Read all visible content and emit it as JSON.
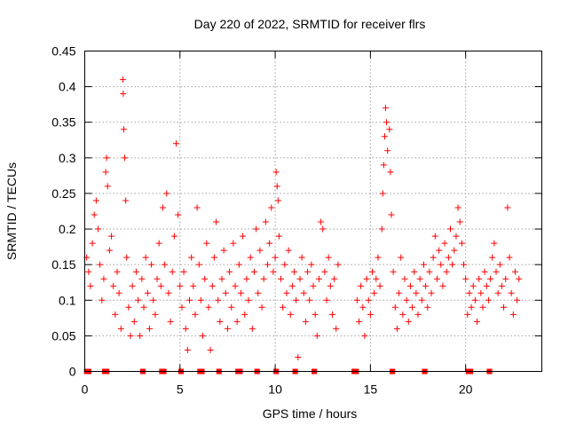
{
  "chart_data": {
    "type": "scatter",
    "title": "Day 220 of 2022, SRMTID for receiver flrs",
    "xlabel": "GPS time / hours",
    "ylabel": "SRMTID / TECUs",
    "xlim": [
      0,
      24
    ],
    "ylim": [
      0,
      0.45
    ],
    "x_ticks": [
      0,
      5,
      10,
      15,
      20
    ],
    "x_tick_labels": [
      "0",
      "5",
      "10",
      "15",
      "20"
    ],
    "y_ticks": [
      0,
      0.05,
      0.1,
      0.15,
      0.2,
      0.25,
      0.3,
      0.35,
      0.4,
      0.45
    ],
    "y_tick_labels": [
      "0",
      "0.05",
      "0.1",
      "0.15",
      "0.2",
      "0.25",
      "0.3",
      "0.35",
      "0.4",
      "0.45"
    ],
    "grid": true,
    "marker": "plus",
    "color": "#ff0000",
    "series": [
      {
        "name": "SRMTID",
        "points": [
          [
            0.1,
            0.16
          ],
          [
            0.2,
            0.14
          ],
          [
            0.3,
            0.12
          ],
          [
            0.4,
            0.18
          ],
          [
            0.5,
            0.22
          ],
          [
            0.6,
            0.24
          ],
          [
            0.7,
            0.2
          ],
          [
            0.8,
            0.15
          ],
          [
            0.9,
            0.1
          ],
          [
            1.0,
            0.13
          ],
          [
            1.1,
            0.28
          ],
          [
            1.15,
            0.3
          ],
          [
            1.2,
            0.26
          ],
          [
            1.3,
            0.17
          ],
          [
            1.4,
            0.19
          ],
          [
            1.5,
            0.12
          ],
          [
            1.6,
            0.08
          ],
          [
            1.7,
            0.14
          ],
          [
            1.8,
            0.11
          ],
          [
            1.9,
            0.06
          ],
          [
            2.0,
            0.41
          ],
          [
            2.02,
            0.39
          ],
          [
            2.05,
            0.34
          ],
          [
            2.1,
            0.3
          ],
          [
            2.15,
            0.24
          ],
          [
            2.2,
            0.16
          ],
          [
            2.3,
            0.09
          ],
          [
            2.4,
            0.05
          ],
          [
            2.5,
            0.12
          ],
          [
            2.6,
            0.07
          ],
          [
            2.7,
            0.14
          ],
          [
            2.8,
            0.1
          ],
          [
            2.9,
            0.05
          ],
          [
            3.0,
            0.13
          ],
          [
            3.1,
            0.09
          ],
          [
            3.2,
            0.16
          ],
          [
            3.3,
            0.11
          ],
          [
            3.4,
            0.06
          ],
          [
            3.5,
            0.15
          ],
          [
            3.6,
            0.1
          ],
          [
            3.7,
            0.08
          ],
          [
            3.8,
            0.13
          ],
          [
            3.9,
            0.18
          ],
          [
            4.0,
            0.12
          ],
          [
            4.1,
            0.23
          ],
          [
            4.2,
            0.15
          ],
          [
            4.3,
            0.25
          ],
          [
            4.4,
            0.11
          ],
          [
            4.5,
            0.07
          ],
          [
            4.6,
            0.14
          ],
          [
            4.7,
            0.19
          ],
          [
            4.8,
            0.32
          ],
          [
            4.9,
            0.22
          ],
          [
            5.0,
            0.12
          ],
          [
            5.1,
            0.09
          ],
          [
            5.2,
            0.14
          ],
          [
            5.3,
            0.06
          ],
          [
            5.4,
            0.03
          ],
          [
            5.5,
            0.1
          ],
          [
            5.6,
            0.16
          ],
          [
            5.7,
            0.12
          ],
          [
            5.8,
            0.08
          ],
          [
            5.9,
            0.23
          ],
          [
            6.0,
            0.15
          ],
          [
            6.1,
            0.1
          ],
          [
            6.2,
            0.05
          ],
          [
            6.3,
            0.13
          ],
          [
            6.4,
            0.18
          ],
          [
            6.5,
            0.09
          ],
          [
            6.6,
            0.03
          ],
          [
            6.7,
            0.12
          ],
          [
            6.8,
            0.16
          ],
          [
            6.9,
            0.21
          ],
          [
            7.0,
            0.1
          ],
          [
            7.1,
            0.07
          ],
          [
            7.2,
            0.13
          ],
          [
            7.3,
            0.17
          ],
          [
            7.4,
            0.11
          ],
          [
            7.5,
            0.06
          ],
          [
            7.6,
            0.14
          ],
          [
            7.7,
            0.09
          ],
          [
            7.8,
            0.18
          ],
          [
            7.9,
            0.12
          ],
          [
            8.0,
            0.07
          ],
          [
            8.1,
            0.15
          ],
          [
            8.2,
            0.11
          ],
          [
            8.3,
            0.19
          ],
          [
            8.4,
            0.08
          ],
          [
            8.5,
            0.13
          ],
          [
            8.6,
            0.1
          ],
          [
            8.7,
            0.16
          ],
          [
            8.8,
            0.06
          ],
          [
            8.9,
            0.14
          ],
          [
            9.0,
            0.2
          ],
          [
            9.1,
            0.11
          ],
          [
            9.2,
            0.17
          ],
          [
            9.3,
            0.09
          ],
          [
            9.4,
            0.13
          ],
          [
            9.5,
            0.21
          ],
          [
            9.6,
            0.15
          ],
          [
            9.7,
            0.18
          ],
          [
            9.8,
            0.23
          ],
          [
            9.9,
            0.14
          ],
          [
            10.0,
            0.16
          ],
          [
            10.05,
            0.28
          ],
          [
            10.1,
            0.26
          ],
          [
            10.15,
            0.24
          ],
          [
            10.2,
            0.19
          ],
          [
            10.3,
            0.13
          ],
          [
            10.4,
            0.09
          ],
          [
            10.5,
            0.15
          ],
          [
            10.6,
            0.11
          ],
          [
            10.7,
            0.17
          ],
          [
            10.8,
            0.08
          ],
          [
            10.9,
            0.12
          ],
          [
            11.0,
            0.14
          ],
          [
            11.1,
            0.1
          ],
          [
            11.2,
            0.02
          ],
          [
            11.3,
            0.13
          ],
          [
            11.4,
            0.16
          ],
          [
            11.5,
            0.11
          ],
          [
            11.6,
            0.07
          ],
          [
            11.7,
            0.14
          ],
          [
            11.8,
            0.1
          ],
          [
            11.9,
            0.15
          ],
          [
            12.0,
            0.12
          ],
          [
            12.1,
            0.08
          ],
          [
            12.2,
            0.05
          ],
          [
            12.3,
            0.13
          ],
          [
            12.4,
            0.21
          ],
          [
            12.5,
            0.2
          ],
          [
            12.6,
            0.14
          ],
          [
            12.7,
            0.1
          ],
          [
            12.8,
            0.16
          ],
          [
            12.9,
            0.12
          ],
          [
            13.0,
            0.08
          ],
          [
            13.1,
            0.13
          ],
          [
            13.2,
            0.06
          ],
          [
            13.3,
            0.15
          ],
          [
            14.3,
            0.1
          ],
          [
            14.4,
            0.07
          ],
          [
            14.5,
            0.12
          ],
          [
            14.6,
            0.09
          ],
          [
            14.7,
            0.05
          ],
          [
            14.8,
            0.13
          ],
          [
            14.9,
            0.1
          ],
          [
            15.0,
            0.08
          ],
          [
            15.1,
            0.14
          ],
          [
            15.2,
            0.11
          ],
          [
            15.3,
            0.13
          ],
          [
            15.4,
            0.16
          ],
          [
            15.5,
            0.12
          ],
          [
            15.6,
            0.2
          ],
          [
            15.65,
            0.25
          ],
          [
            15.7,
            0.29
          ],
          [
            15.75,
            0.33
          ],
          [
            15.8,
            0.37
          ],
          [
            15.85,
            0.35
          ],
          [
            15.9,
            0.31
          ],
          [
            16.0,
            0.34
          ],
          [
            16.05,
            0.28
          ],
          [
            16.1,
            0.22
          ],
          [
            16.2,
            0.14
          ],
          [
            16.3,
            0.09
          ],
          [
            16.4,
            0.06
          ],
          [
            16.5,
            0.11
          ],
          [
            16.6,
            0.16
          ],
          [
            16.7,
            0.08
          ],
          [
            16.8,
            0.13
          ],
          [
            16.9,
            0.1
          ],
          [
            17.0,
            0.07
          ],
          [
            17.1,
            0.12
          ],
          [
            17.2,
            0.09
          ],
          [
            17.3,
            0.14
          ],
          [
            17.4,
            0.11
          ],
          [
            17.5,
            0.08
          ],
          [
            17.6,
            0.13
          ],
          [
            17.7,
            0.1
          ],
          [
            17.8,
            0.15
          ],
          [
            17.9,
            0.12
          ],
          [
            18.0,
            0.09
          ],
          [
            18.1,
            0.14
          ],
          [
            18.2,
            0.11
          ],
          [
            18.3,
            0.16
          ],
          [
            18.4,
            0.19
          ],
          [
            18.5,
            0.13
          ],
          [
            18.6,
            0.17
          ],
          [
            18.7,
            0.15
          ],
          [
            18.8,
            0.12
          ],
          [
            18.9,
            0.18
          ],
          [
            19.0,
            0.14
          ],
          [
            19.1,
            0.16
          ],
          [
            19.2,
            0.2
          ],
          [
            19.3,
            0.15
          ],
          [
            19.4,
            0.17
          ],
          [
            19.5,
            0.19
          ],
          [
            19.6,
            0.23
          ],
          [
            19.7,
            0.21
          ],
          [
            19.8,
            0.18
          ],
          [
            19.9,
            0.15
          ],
          [
            20.0,
            0.13
          ],
          [
            20.1,
            0.08
          ],
          [
            20.2,
            0.11
          ],
          [
            20.3,
            0.09
          ],
          [
            20.4,
            0.12
          ],
          [
            20.5,
            0.1
          ],
          [
            20.6,
            0.07
          ],
          [
            20.7,
            0.13
          ],
          [
            20.8,
            0.11
          ],
          [
            20.9,
            0.09
          ],
          [
            21.0,
            0.14
          ],
          [
            21.1,
            0.12
          ],
          [
            21.2,
            0.1
          ],
          [
            21.3,
            0.13
          ],
          [
            21.4,
            0.16
          ],
          [
            21.5,
            0.18
          ],
          [
            21.6,
            0.14
          ],
          [
            21.7,
            0.11
          ],
          [
            21.8,
            0.15
          ],
          [
            21.9,
            0.12
          ],
          [
            22.0,
            0.09
          ],
          [
            22.1,
            0.13
          ],
          [
            22.2,
            0.23
          ],
          [
            22.3,
            0.16
          ],
          [
            22.4,
            0.11
          ],
          [
            22.5,
            0.08
          ],
          [
            22.6,
            0.14
          ],
          [
            22.7,
            0.1
          ],
          [
            22.8,
            0.13
          ]
        ]
      }
    ],
    "zero_band_x": [
      [
        0.05,
        0.25
      ],
      [
        1.0,
        1.2
      ],
      [
        3.0,
        3.1
      ],
      [
        4.0,
        4.2
      ],
      [
        5.0,
        5.1
      ],
      [
        6.0,
        6.2
      ],
      [
        7.0,
        7.1
      ],
      [
        8.0,
        8.2
      ],
      [
        9.0,
        9.1
      ],
      [
        10.0,
        10.1
      ],
      [
        11.0,
        11.1
      ],
      [
        12.0,
        12.1
      ],
      [
        14.1,
        14.3
      ],
      [
        16.1,
        16.2
      ],
      [
        17.8,
        17.9
      ],
      [
        20.1,
        20.3
      ],
      [
        21.2,
        21.3
      ]
    ]
  }
}
